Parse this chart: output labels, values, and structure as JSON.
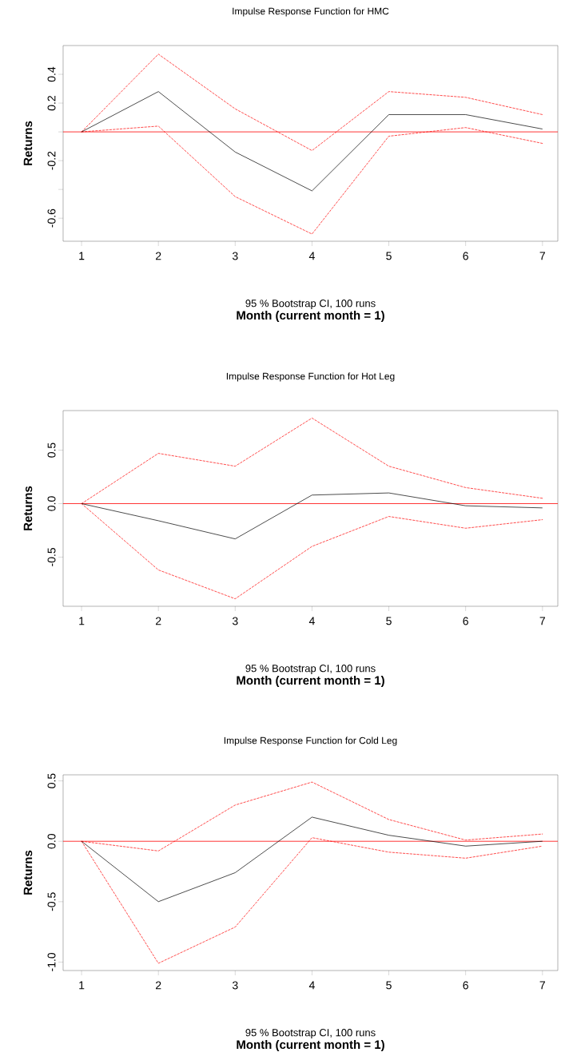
{
  "chart_data": [
    {
      "type": "line",
      "title": "Impulse Response Function for HMC",
      "xlabel": "Month (current month = 1)",
      "ylabel": "Returns",
      "annotations": [
        "95 % Bootstrap CI,  100 runs"
      ],
      "x": [
        1,
        2,
        3,
        4,
        5,
        6,
        7
      ],
      "xlim": [
        0.76,
        7.2
      ],
      "xticks": [
        1,
        2,
        3,
        4,
        5,
        6,
        7
      ],
      "ylim": [
        -0.76,
        0.6
      ],
      "yticks": [
        -0.6,
        {
          "value": -0.4,
          "label": null
        },
        -0.2,
        {
          "value": 0,
          "label": null
        },
        0.2,
        0.4
      ],
      "marker": "none",
      "series": [
        {
          "color": "#000000",
          "line_style": "solid",
          "values": [
            0,
            0.28,
            -0.14,
            -0.41,
            0.12,
            0.12,
            0.02
          ]
        },
        {
          "color": "#ff0000",
          "line_style": "dashed",
          "values": [
            0,
            0.54,
            0.16,
            -0.13,
            0.28,
            0.24,
            0.12
          ]
        },
        {
          "color": "#ff0000",
          "line_style": "dashed",
          "values": [
            0,
            0.04,
            -0.45,
            -0.71,
            -0.03,
            0.03,
            -0.08
          ]
        }
      ],
      "ref_lines": [
        {
          "axis": "y",
          "value": 0,
          "color": "#ff0000"
        }
      ]
    },
    {
      "type": "line",
      "title": "Impulse Response Function for Hot Leg",
      "xlabel": "Month (current month = 1)",
      "ylabel": "Returns",
      "annotations": [
        "95 % Bootstrap CI,  100 runs"
      ],
      "x": [
        1,
        2,
        3,
        4,
        5,
        6,
        7
      ],
      "xlim": [
        0.76,
        7.2
      ],
      "xticks": [
        1,
        2,
        3,
        4,
        5,
        6,
        7
      ],
      "ylim": [
        -0.96,
        0.87
      ],
      "yticks": [
        -0.5,
        {
          "value": 0,
          "label": "0.0"
        },
        0.5
      ],
      "marker": "none",
      "series": [
        {
          "color": "#000000",
          "line_style": "solid",
          "values": [
            0,
            -0.16,
            -0.33,
            0.08,
            0.1,
            -0.02,
            -0.04
          ]
        },
        {
          "color": "#ff0000",
          "line_style": "dashed",
          "values": [
            0,
            0.47,
            0.35,
            0.8,
            0.35,
            0.15,
            0.05
          ]
        },
        {
          "color": "#ff0000",
          "line_style": "dashed",
          "values": [
            0,
            -0.62,
            -0.89,
            -0.4,
            -0.12,
            -0.23,
            -0.15
          ]
        }
      ],
      "ref_lines": [
        {
          "axis": "y",
          "value": 0,
          "color": "#ff0000"
        }
      ]
    },
    {
      "type": "line",
      "title": "Impulse Response Function for Cold Leg",
      "xlabel": "Month (current month = 1)",
      "ylabel": "Returns",
      "annotations": [
        "95 % Bootstrap CI,  100 runs"
      ],
      "x": [
        1,
        2,
        3,
        4,
        5,
        6,
        7
      ],
      "xlim": [
        0.76,
        7.2
      ],
      "xticks": [
        1,
        2,
        3,
        4,
        5,
        6,
        7
      ],
      "ylim": [
        -1.07,
        0.55
      ],
      "yticks": [
        {
          "value": -1,
          "label": "-1.0"
        },
        -0.5,
        {
          "value": 0,
          "label": "0.0"
        },
        0.5
      ],
      "marker": "none",
      "series": [
        {
          "color": "#000000",
          "line_style": "solid",
          "values": [
            0,
            -0.5,
            -0.26,
            0.2,
            0.05,
            -0.04,
            0
          ]
        },
        {
          "color": "#ff0000",
          "line_style": "dashed",
          "values": [
            0,
            -0.08,
            0.3,
            0.49,
            0.18,
            0.01,
            0.06
          ]
        },
        {
          "color": "#ff0000",
          "line_style": "dashed",
          "values": [
            0,
            -1.01,
            -0.71,
            0.03,
            -0.09,
            -0.14,
            -0.04
          ]
        }
      ],
      "ref_lines": [
        {
          "axis": "y",
          "value": 0,
          "color": "#ff0000"
        }
      ]
    }
  ]
}
